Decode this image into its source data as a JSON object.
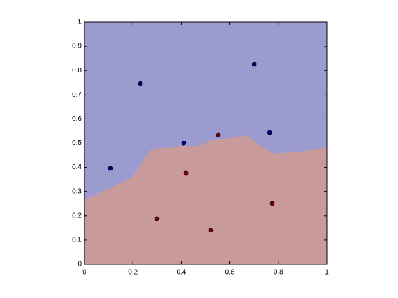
{
  "chart_data": {
    "type": "scatter",
    "xlim": [
      0,
      1
    ],
    "ylim": [
      0,
      1
    ],
    "xticks": [
      0,
      0.2,
      0.4,
      0.6,
      0.8,
      1
    ],
    "yticks": [
      0,
      0.1,
      0.2,
      0.3,
      0.4,
      0.5,
      0.6,
      0.7,
      0.8,
      0.9,
      1
    ],
    "region_colors": {
      "upper": "#9b9bd0",
      "lower": "#c99a9a"
    },
    "boundary": {
      "x": [
        0,
        0.1,
        0.2,
        0.27,
        0.33,
        0.48,
        0.52,
        0.67,
        0.72,
        0.78,
        0.85,
        0.9,
        1
      ],
      "y": [
        0.265,
        0.31,
        0.36,
        0.47,
        0.48,
        0.49,
        0.51,
        0.53,
        0.49,
        0.455,
        0.46,
        0.465,
        0.48
      ]
    },
    "series": [
      {
        "color": "#00007f",
        "x": [
          0.108,
          0.231,
          0.41,
          0.701,
          0.764
        ],
        "values": [
          0.396,
          0.746,
          0.501,
          0.826,
          0.544
        ]
      },
      {
        "color": "#7f0000",
        "x": [
          0.299,
          0.419,
          0.521,
          0.553,
          0.775
        ],
        "values": [
          0.188,
          0.376,
          0.14,
          0.533,
          0.251
        ]
      }
    ]
  }
}
